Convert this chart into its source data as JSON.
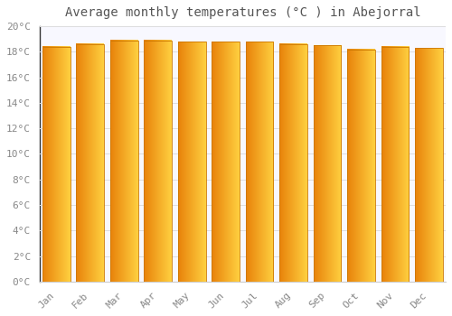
{
  "title": "Average monthly temperatures (°C ) in Abejorral",
  "months": [
    "Jan",
    "Feb",
    "Mar",
    "Apr",
    "May",
    "Jun",
    "Jul",
    "Aug",
    "Sep",
    "Oct",
    "Nov",
    "Dec"
  ],
  "values": [
    18.4,
    18.6,
    18.9,
    18.9,
    18.8,
    18.8,
    18.8,
    18.6,
    18.5,
    18.2,
    18.4,
    18.3
  ],
  "bar_color_left": "#E8820A",
  "bar_color_right": "#FFD040",
  "bar_edge_color": "#CC7700",
  "background_color": "#FFFFFF",
  "plot_bg_color": "#F8F8FF",
  "grid_color": "#DDDDDD",
  "text_color": "#888888",
  "title_color": "#555555",
  "ylim": [
    0,
    20
  ],
  "yticks": [
    0,
    2,
    4,
    6,
    8,
    10,
    12,
    14,
    16,
    18,
    20
  ],
  "ytick_labels": [
    "0°C",
    "2°C",
    "4°C",
    "6°C",
    "8°C",
    "10°C",
    "12°C",
    "14°C",
    "16°C",
    "18°C",
    "20°C"
  ],
  "title_fontsize": 10,
  "tick_fontsize": 8,
  "font_family": "monospace",
  "bar_width": 0.82
}
